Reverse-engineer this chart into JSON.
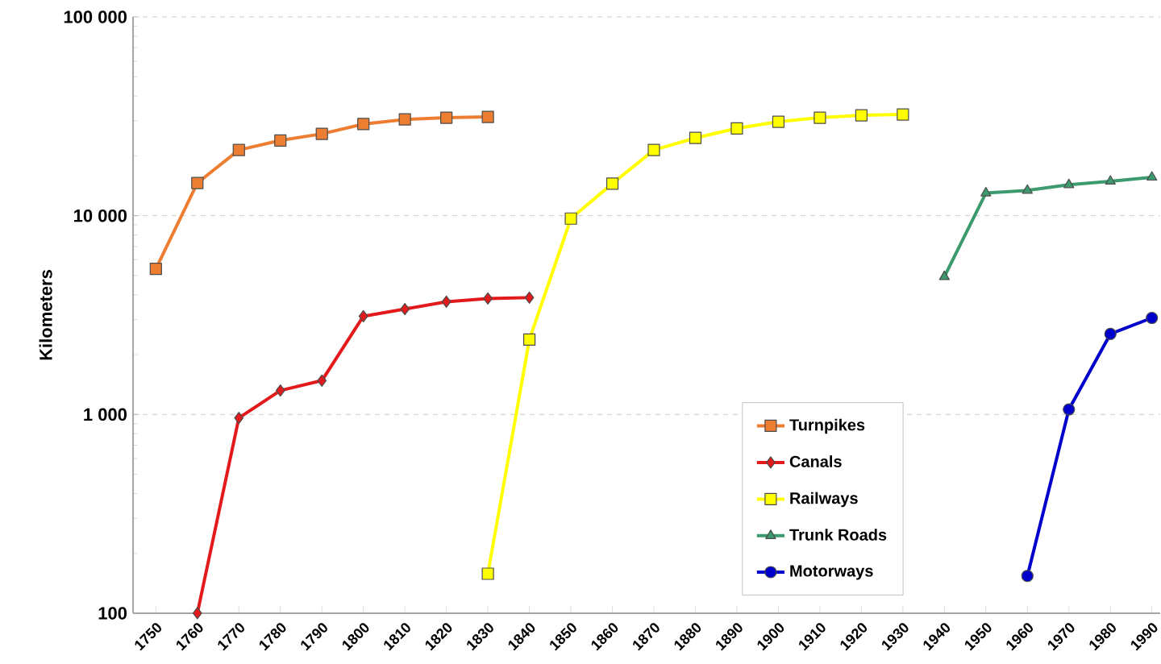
{
  "chart_data": {
    "type": "line",
    "ylabel": "Kilometers",
    "categories": [
      "1750",
      "1760",
      "1770",
      "1780",
      "1790",
      "1800",
      "1810",
      "1820",
      "1830",
      "1840",
      "1850",
      "1860",
      "1870",
      "1880",
      "1890",
      "1900",
      "1910",
      "1920",
      "1930",
      "1940",
      "1950",
      "1960",
      "1970",
      "1980",
      "1990"
    ],
    "log": "y",
    "ylim": [
      100,
      100000
    ],
    "yticks": [
      {
        "value": 100,
        "label": "100"
      },
      {
        "value": 1000,
        "label": "1 000"
      },
      {
        "value": 10000,
        "label": "10 000"
      },
      {
        "value": 100000,
        "label": "100 000"
      }
    ],
    "grid": "y",
    "legend": "bottom right",
    "line_style": "solid",
    "series": [
      {
        "name": "Turnpikes",
        "color": "#ed7d31",
        "marker": "square",
        "values": [
          5400,
          14600,
          21400,
          23900,
          25800,
          28900,
          30500,
          31100,
          31400,
          null,
          null,
          null,
          null,
          null,
          null,
          null,
          null,
          null,
          null,
          null,
          null,
          null,
          null,
          null,
          null
        ]
      },
      {
        "name": "Canals",
        "color": "#e31a1c",
        "marker": "diamond",
        "values": [
          null,
          100,
          960,
          1320,
          1480,
          3120,
          3390,
          3690,
          3830,
          3870,
          null,
          null,
          null,
          null,
          null,
          null,
          null,
          null,
          null,
          null,
          null,
          null,
          null,
          null,
          null
        ]
      },
      {
        "name": "Railways",
        "color": "#ffff00",
        "marker": "square",
        "values": [
          null,
          null,
          null,
          null,
          null,
          null,
          null,
          null,
          158,
          2380,
          9670,
          14500,
          21400,
          24600,
          27500,
          29700,
          31100,
          32000,
          32300,
          null,
          null,
          null,
          null,
          null,
          null
        ]
      },
      {
        "name": "Trunk Roads",
        "color": "#3c9a6e",
        "marker": "triangle",
        "values": [
          null,
          null,
          null,
          null,
          null,
          null,
          null,
          null,
          null,
          null,
          null,
          null,
          null,
          null,
          null,
          null,
          null,
          null,
          null,
          4930,
          13000,
          13400,
          14300,
          14900,
          15600
        ]
      },
      {
        "name": "Motorways",
        "color": "#0000cc",
        "marker": "circle",
        "values": [
          null,
          null,
          null,
          null,
          null,
          null,
          null,
          null,
          null,
          null,
          null,
          null,
          null,
          null,
          null,
          null,
          null,
          null,
          null,
          null,
          null,
          154,
          1060,
          2540,
          3060
        ]
      }
    ]
  }
}
